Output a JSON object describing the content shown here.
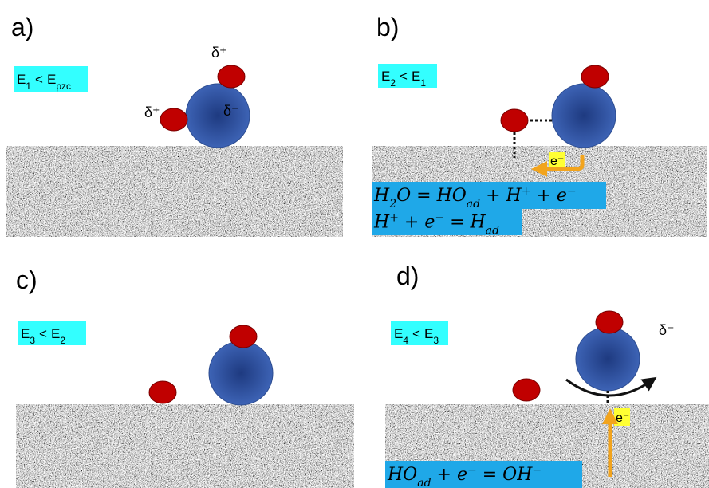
{
  "panels": [
    {
      "label": "a)",
      "condition": {
        "left": "E",
        "left_sub": "1",
        "op": "<",
        "right": "E",
        "right_sub": "pzc"
      },
      "charges": [
        "δ⁺",
        "δ⁺",
        "δ⁻"
      ]
    },
    {
      "label": "b)",
      "condition": {
        "left": "E",
        "left_sub": "2",
        "op": "<",
        "right": "E",
        "right_sub": "1"
      },
      "electron": "e⁻",
      "equations": [
        [
          {
            "t": "H"
          },
          {
            "sub": "2"
          },
          {
            "t": "O = HO"
          },
          {
            "sub": "ad"
          },
          {
            "t": " + H"
          },
          {
            "sup": "+"
          },
          {
            "t": " + e"
          },
          {
            "sup": "−"
          }
        ],
        [
          {
            "t": "H"
          },
          {
            "sup": "+"
          },
          {
            "t": " + e"
          },
          {
            "sup": "−"
          },
          {
            "t": " = H"
          },
          {
            "sub": "ad"
          }
        ]
      ]
    },
    {
      "label": "c)",
      "condition": {
        "left": "E",
        "left_sub": "3",
        "op": "<",
        "right": "E",
        "right_sub": "2"
      }
    },
    {
      "label": "d)",
      "condition": {
        "left": "E",
        "left_sub": "4",
        "op": "<",
        "right": "E",
        "right_sub": "3"
      },
      "charges": [
        "δ⁻"
      ],
      "electron": "e⁻",
      "equations": [
        [
          {
            "t": "HO"
          },
          {
            "sub": "ad"
          },
          {
            "t": " + e"
          },
          {
            "sup": "−"
          },
          {
            "t": " = OH"
          },
          {
            "sup": "−"
          }
        ]
      ]
    }
  ]
}
